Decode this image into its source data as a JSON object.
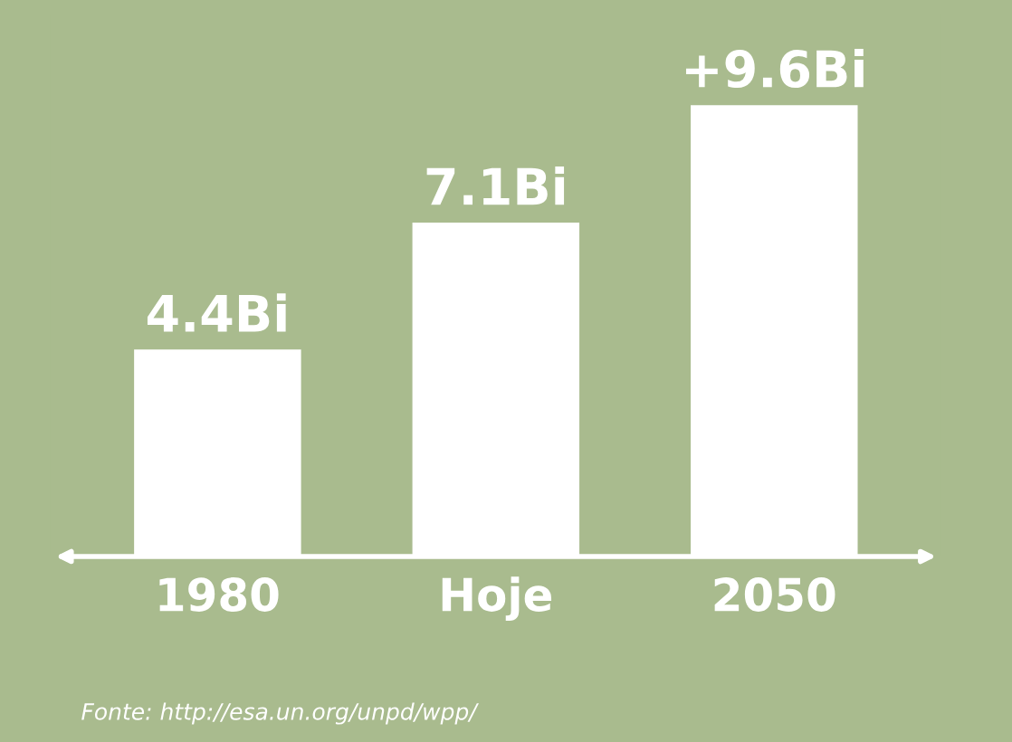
{
  "chart_data": {
    "type": "bar",
    "categories": [
      "1980",
      "Hoje",
      "2050"
    ],
    "values": [
      4.4,
      7.1,
      9.6
    ],
    "color": "#ffffff",
    "value_labels": [
      "4.4Bi",
      "7.1Bi",
      "+9.6Bi"
    ],
    "tick_labels": "x",
    "grid": false,
    "legend": false,
    "annotations": [
      "Fonte: http://esa.un.org/unpd/wpp/"
    ]
  }
}
